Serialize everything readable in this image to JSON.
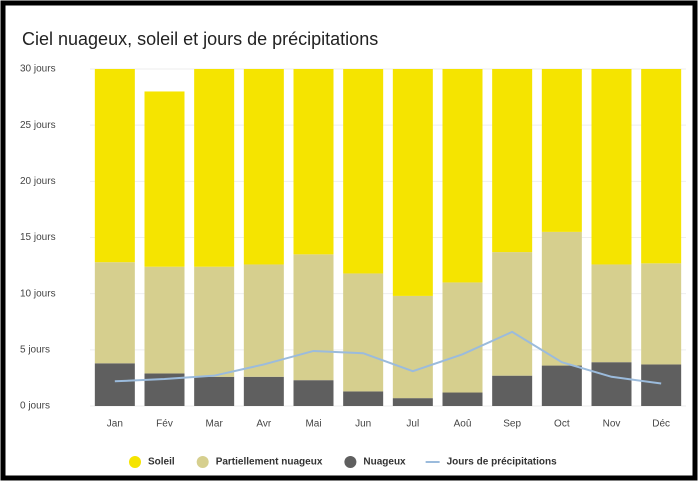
{
  "chart_data": {
    "type": "stacked-bar-line",
    "title": "Ciel nuageux, soleil et jours de précipitations",
    "categories": [
      "Jan",
      "Fév",
      "Mar",
      "Avr",
      "Mai",
      "Jun",
      "Jul",
      "Aoû",
      "Sep",
      "Oct",
      "Nov",
      "Déc"
    ],
    "series": [
      {
        "name": "Nuageux",
        "color": "#5f5f5f",
        "kind": "bar",
        "values": [
          3.8,
          2.9,
          2.6,
          2.6,
          2.3,
          1.3,
          0.7,
          1.2,
          2.7,
          3.6,
          3.9,
          3.7
        ]
      },
      {
        "name": "Partiellement nuageux",
        "color": "#d6cf8e",
        "kind": "bar",
        "values": [
          9.0,
          9.5,
          9.8,
          10.0,
          11.2,
          10.5,
          9.1,
          9.8,
          11.0,
          11.9,
          8.7,
          9.0
        ]
      },
      {
        "name": "Soleil",
        "color": "#f5e400",
        "kind": "bar",
        "values": [
          17.2,
          15.6,
          17.6,
          17.4,
          16.5,
          18.2,
          20.2,
          19.0,
          16.3,
          14.5,
          17.4,
          17.3
        ]
      },
      {
        "name": "Jours de précipitations",
        "color": "#9bbbdc",
        "kind": "line",
        "values": [
          2.2,
          2.4,
          2.7,
          3.7,
          4.9,
          4.7,
          3.1,
          4.6,
          6.6,
          3.9,
          2.6,
          2.0
        ]
      }
    ],
    "legend_order": [
      2,
      1,
      0,
      3
    ],
    "ylim": [
      0,
      30
    ],
    "yticks": [
      {
        "value": 0,
        "label": "0 jours"
      },
      {
        "value": 5,
        "label": "5 jours"
      },
      {
        "value": 10,
        "label": "10 jours"
      },
      {
        "value": 15,
        "label": "15 jours"
      },
      {
        "value": 20,
        "label": "20 jours"
      },
      {
        "value": 25,
        "label": "25 jours"
      },
      {
        "value": 30,
        "label": "30 jours"
      }
    ],
    "legend": "bottom"
  }
}
